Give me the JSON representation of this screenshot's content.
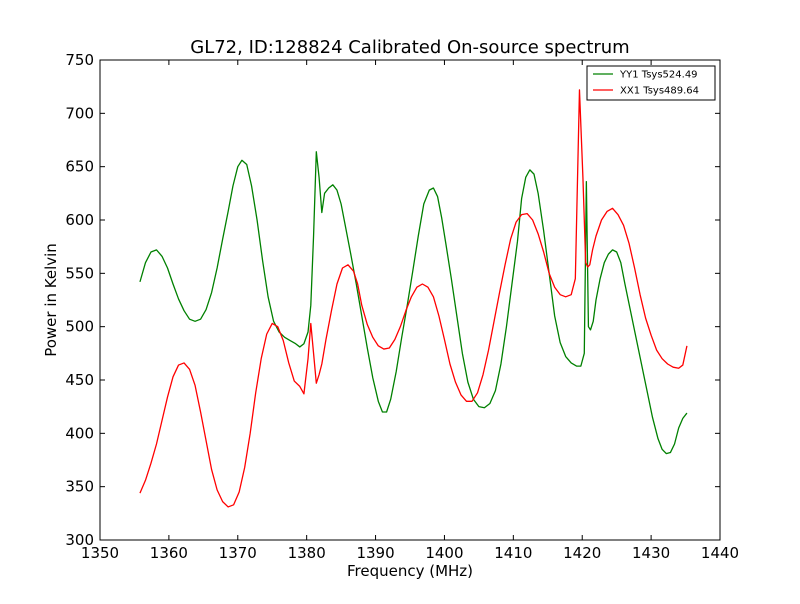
{
  "chart_data": {
    "type": "line",
    "title": "GL72, ID:128824 Calibrated On-source spectrum",
    "xlabel": "Frequency (MHz)",
    "ylabel": "Power in Kelvin",
    "xlim": [
      1350,
      1440
    ],
    "ylim": [
      300,
      750
    ],
    "xticks": [
      1350,
      1360,
      1370,
      1380,
      1390,
      1400,
      1410,
      1420,
      1430,
      1440
    ],
    "yticks": [
      300,
      350,
      400,
      450,
      500,
      550,
      600,
      650,
      700,
      750
    ],
    "grid": false,
    "legend_position": "top-right",
    "series": [
      {
        "name": "YY1 Tsys524.49",
        "color": "#008000",
        "x": [
          1355.8,
          1356.6,
          1357.4,
          1358.2,
          1359.0,
          1359.8,
          1360.6,
          1361.4,
          1362.2,
          1363.0,
          1363.8,
          1364.6,
          1365.4,
          1366.2,
          1367.0,
          1367.8,
          1368.6,
          1369.3,
          1370.0,
          1370.6,
          1371.3,
          1372.0,
          1372.8,
          1373.6,
          1374.4,
          1375.2,
          1376.0,
          1376.8,
          1377.6,
          1378.4,
          1379.0,
          1379.6,
          1380.2,
          1380.6,
          1381.0,
          1381.4,
          1381.8,
          1382.2,
          1382.6,
          1383.2,
          1383.8,
          1384.4,
          1385.0,
          1385.6,
          1386.4,
          1387.2,
          1388.0,
          1388.8,
          1389.6,
          1390.4,
          1391.0,
          1391.6,
          1392.2,
          1393.0,
          1393.8,
          1394.6,
          1395.4,
          1396.2,
          1397.0,
          1397.8,
          1398.4,
          1399.0,
          1399.6,
          1400.2,
          1401.0,
          1401.8,
          1402.6,
          1403.4,
          1404.2,
          1405.0,
          1405.8,
          1406.6,
          1407.4,
          1408.2,
          1409.0,
          1409.8,
          1410.6,
          1411.2,
          1411.8,
          1412.4,
          1413.0,
          1413.6,
          1414.4,
          1415.2,
          1416.0,
          1416.8,
          1417.6,
          1418.4,
          1419.2,
          1419.8,
          1420.3,
          1420.6,
          1420.9,
          1421.2,
          1421.6,
          1422.0,
          1422.6,
          1423.2,
          1423.8,
          1424.4,
          1425.0,
          1425.6,
          1426.2,
          1427.0,
          1427.8,
          1428.6,
          1429.4,
          1430.2,
          1431.0,
          1431.6,
          1432.2,
          1432.8,
          1433.4,
          1434.0,
          1434.6,
          1435.2
        ],
        "y": [
          542,
          560,
          570,
          572,
          566,
          555,
          540,
          526,
          515,
          507,
          505,
          507,
          516,
          532,
          555,
          582,
          608,
          632,
          650,
          656,
          652,
          632,
          600,
          562,
          528,
          505,
          495,
          490,
          487,
          484,
          481,
          484,
          495,
          520,
          585,
          664,
          640,
          607,
          625,
          630,
          633,
          628,
          615,
          595,
          568,
          540,
          510,
          480,
          452,
          430,
          420,
          420,
          432,
          458,
          490,
          520,
          552,
          585,
          615,
          628,
          630,
          622,
          602,
          578,
          545,
          510,
          475,
          448,
          432,
          425,
          424,
          428,
          440,
          465,
          500,
          540,
          580,
          620,
          640,
          647,
          643,
          625,
          590,
          550,
          510,
          485,
          472,
          466,
          463,
          463,
          475,
          636,
          500,
          497,
          505,
          525,
          545,
          560,
          568,
          572,
          570,
          560,
          540,
          515,
          490,
          465,
          440,
          415,
          395,
          385,
          381,
          382,
          390,
          405,
          414,
          419
        ]
      },
      {
        "name": "XX1 Tsys489.64",
        "color": "#ff0000",
        "x": [
          1355.8,
          1356.6,
          1357.4,
          1358.2,
          1359.0,
          1359.8,
          1360.6,
          1361.4,
          1362.2,
          1363.0,
          1363.8,
          1364.6,
          1365.4,
          1366.2,
          1367.0,
          1367.8,
          1368.6,
          1369.4,
          1370.2,
          1371.0,
          1371.8,
          1372.6,
          1373.4,
          1374.2,
          1375.0,
          1375.8,
          1376.6,
          1377.4,
          1378.2,
          1379.0,
          1379.6,
          1380.2,
          1380.6,
          1381.0,
          1381.4,
          1381.8,
          1382.2,
          1382.8,
          1383.6,
          1384.4,
          1385.2,
          1386.0,
          1386.8,
          1387.4,
          1388.0,
          1388.8,
          1389.6,
          1390.4,
          1391.2,
          1392.0,
          1392.8,
          1393.6,
          1394.4,
          1395.2,
          1396.0,
          1396.8,
          1397.6,
          1398.4,
          1399.2,
          1400.0,
          1400.8,
          1401.6,
          1402.4,
          1403.2,
          1404.0,
          1404.8,
          1405.6,
          1406.4,
          1407.2,
          1408.0,
          1408.8,
          1409.6,
          1410.4,
          1411.2,
          1412.0,
          1412.8,
          1413.6,
          1414.4,
          1415.2,
          1416.0,
          1416.8,
          1417.6,
          1418.4,
          1419.0,
          1419.6,
          1420.1,
          1420.5,
          1420.8,
          1421.1,
          1421.5,
          1422.0,
          1422.8,
          1423.6,
          1424.4,
          1425.2,
          1426.0,
          1426.8,
          1427.6,
          1428.4,
          1429.2,
          1430.0,
          1430.8,
          1431.6,
          1432.4,
          1433.2,
          1434.0,
          1434.6,
          1435.2
        ],
        "y": [
          344,
          356,
          372,
          390,
          412,
          434,
          453,
          464,
          466,
          460,
          445,
          420,
          393,
          366,
          347,
          336,
          331,
          333,
          345,
          368,
          400,
          438,
          470,
          493,
          503,
          500,
          487,
          466,
          449,
          444,
          437,
          470,
          503,
          475,
          447,
          455,
          465,
          488,
          515,
          540,
          555,
          558,
          552,
          540,
          520,
          502,
          490,
          482,
          479,
          480,
          488,
          500,
          515,
          528,
          537,
          540,
          537,
          528,
          510,
          488,
          465,
          448,
          436,
          430,
          430,
          438,
          455,
          478,
          505,
          532,
          558,
          582,
          598,
          605,
          606,
          600,
          587,
          570,
          550,
          537,
          530,
          528,
          530,
          545,
          722,
          640,
          560,
          556,
          558,
          572,
          585,
          600,
          608,
          611,
          605,
          595,
          578,
          555,
          530,
          508,
          492,
          478,
          470,
          465,
          462,
          461,
          464,
          482
        ]
      }
    ]
  }
}
